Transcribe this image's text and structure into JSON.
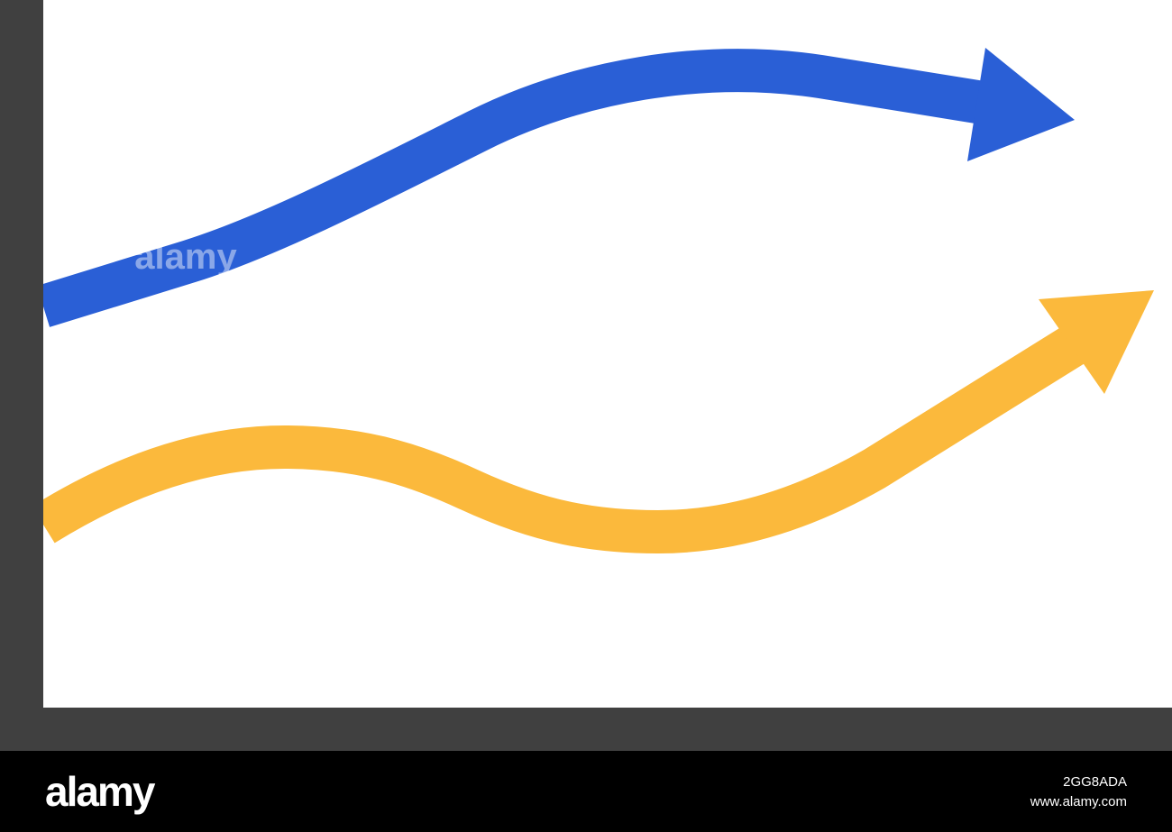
{
  "watermark": "alamy",
  "footer": {
    "logo": "alamy",
    "image_id": "2GG8ADA",
    "url": "www.alamy.com"
  }
}
